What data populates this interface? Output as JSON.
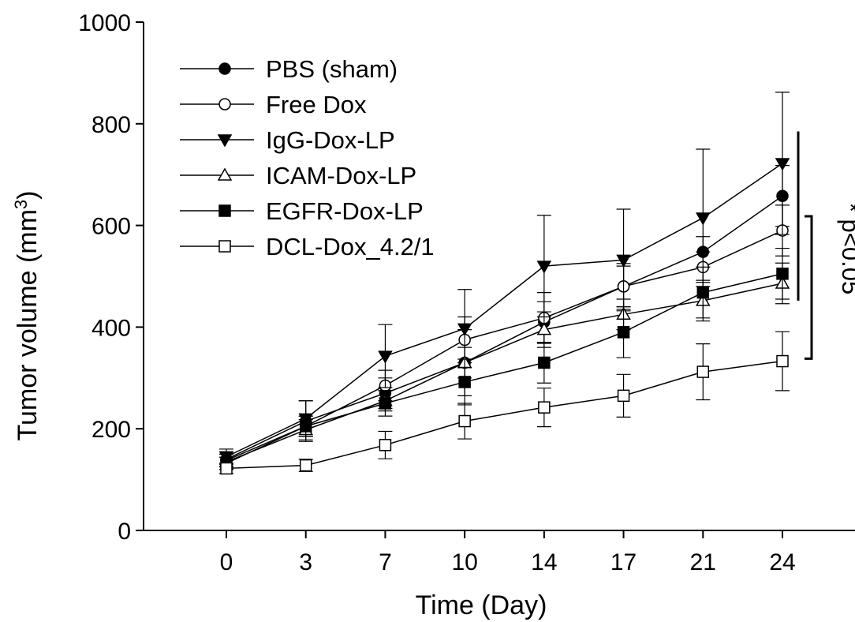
{
  "chart_data": {
    "type": "line",
    "xlabel": "Time (Day)",
    "ylabel_main": "Tumor volume (mm",
    "ylabel_sup": "3",
    "ylabel_close": ")",
    "x": [
      0,
      3,
      7,
      10,
      14,
      17,
      21,
      24
    ],
    "x_tick_labels": [
      "0",
      "3",
      "7",
      "10",
      "14",
      "17",
      "21",
      "24"
    ],
    "ylim": [
      0,
      1000
    ],
    "y_ticks": [
      0,
      200,
      400,
      600,
      800,
      1000
    ],
    "y_tick_labels": [
      "0",
      "200",
      "400",
      "600",
      "800",
      "1000"
    ],
    "legend_position": "top-left",
    "annotation": "* p<0.05",
    "series": [
      {
        "name": "PBS (sham)",
        "marker": "circle",
        "fill": "filled",
        "values": [
          140,
          215,
          270,
          330,
          410,
          480,
          548,
          658
        ],
        "errors": [
          15,
          40,
          30,
          65,
          40,
          40,
          30,
          60
        ]
      },
      {
        "name": "Free Dox",
        "marker": "circle",
        "fill": "open",
        "values": [
          138,
          205,
          285,
          375,
          418,
          480,
          518,
          590
        ],
        "errors": [
          12,
          20,
          30,
          45,
          50,
          45,
          30,
          50
        ]
      },
      {
        "name": "IgG-Dox-LP",
        "marker": "triangle-down",
        "fill": "filled",
        "values": [
          145,
          220,
          343,
          397,
          520,
          532,
          615,
          722
        ],
        "errors": [
          15,
          35,
          62,
          77,
          100,
          100,
          135,
          140
        ]
      },
      {
        "name": "ICAM-Dox-LP",
        "marker": "triangle-up",
        "fill": "open",
        "values": [
          135,
          198,
          255,
          330,
          395,
          425,
          452,
          486
        ],
        "errors": [
          15,
          20,
          20,
          30,
          35,
          30,
          40,
          40
        ]
      },
      {
        "name": "EGFR-Dox-LP",
        "marker": "square",
        "fill": "filled",
        "values": [
          132,
          205,
          250,
          292,
          330,
          390,
          468,
          505
        ],
        "errors": [
          12,
          20,
          25,
          45,
          40,
          50,
          50,
          50
        ]
      },
      {
        "name": "DCL-Dox_4.2/1",
        "marker": "square",
        "fill": "open",
        "values": [
          122,
          128,
          168,
          215,
          242,
          265,
          312,
          333
        ],
        "errors": [
          10,
          12,
          27,
          35,
          38,
          42,
          55,
          58
        ]
      }
    ]
  }
}
